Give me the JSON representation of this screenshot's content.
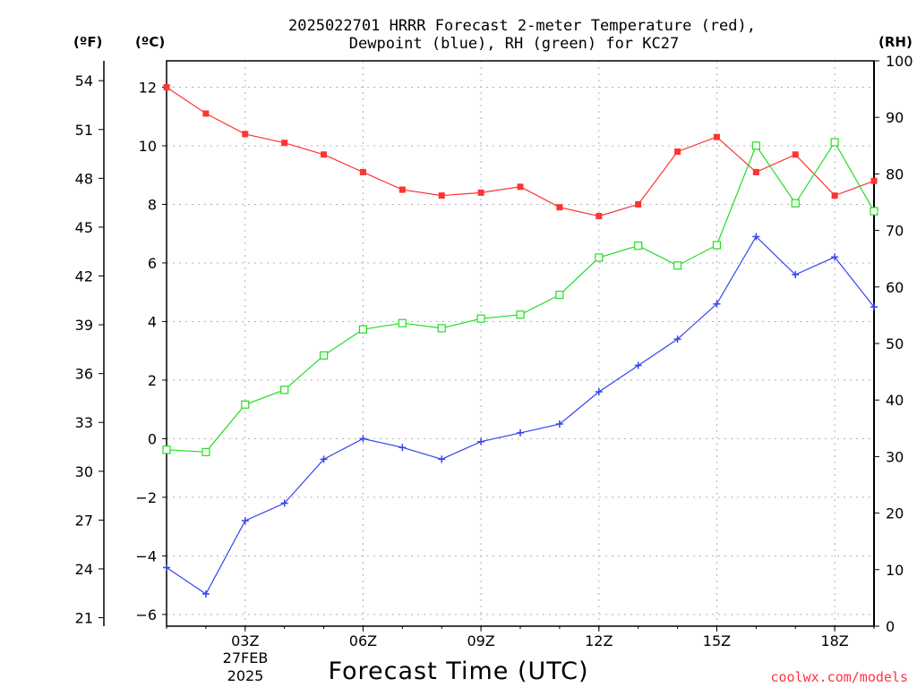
{
  "chart_data": {
    "type": "line",
    "title_lines": [
      "2025022701 HRRR Forecast 2-meter Temperature (red),",
      "Dewpoint (blue), RH (green) for KC27"
    ],
    "xlabel": "Forecast Time (UTC)",
    "credit": "coolwx.com/models",
    "units": {
      "fahrenheit": "(ºF)",
      "celsius": "(ºC)",
      "rh": "(RH)"
    },
    "x_hours": [
      1,
      2,
      3,
      4,
      5,
      6,
      7,
      8,
      9,
      10,
      11,
      12,
      13,
      14,
      15,
      16,
      17,
      18,
      19
    ],
    "xlim": [
      1,
      19
    ],
    "x_ticks": [
      {
        "hour": 3,
        "label": "03Z"
      },
      {
        "hour": 6,
        "label": "06Z"
      },
      {
        "hour": 9,
        "label": "09Z"
      },
      {
        "hour": 12,
        "label": "12Z"
      },
      {
        "hour": 15,
        "label": "15Z"
      },
      {
        "hour": 18,
        "label": "18Z"
      }
    ],
    "date_label_lines": [
      "27FEB",
      "2025"
    ],
    "celsius_axis": {
      "ylim": [
        -6.4,
        12.9
      ],
      "ticks": [
        -6,
        -4,
        -2,
        0,
        2,
        4,
        6,
        8,
        10,
        12
      ]
    },
    "fahrenheit_axis": {
      "ticks": [
        21,
        24,
        27,
        30,
        33,
        36,
        39,
        42,
        45,
        48,
        51,
        54
      ]
    },
    "rh_axis": {
      "ylim": [
        0,
        100
      ],
      "ticks": [
        0,
        10,
        20,
        30,
        40,
        50,
        60,
        70,
        80,
        90,
        100
      ]
    },
    "grid": true,
    "series": [
      {
        "name": "Temperature",
        "axis": "celsius",
        "color": "#ff3333",
        "marker": "filled-square",
        "values": [
          12.0,
          11.1,
          10.4,
          10.1,
          9.7,
          9.1,
          8.5,
          8.3,
          8.4,
          8.6,
          7.9,
          7.6,
          8.0,
          9.8,
          10.3,
          9.1,
          9.7,
          8.3,
          8.8
        ]
      },
      {
        "name": "Dewpoint",
        "axis": "celsius",
        "color": "#3344ee",
        "marker": "plus",
        "values": [
          -4.4,
          -5.3,
          -2.8,
          -2.2,
          -0.7,
          0.0,
          -0.3,
          -0.7,
          -0.1,
          0.2,
          0.5,
          1.6,
          2.5,
          3.4,
          4.6,
          6.9,
          5.6,
          6.2,
          4.5
        ]
      },
      {
        "name": "RH",
        "axis": "rh",
        "color": "#22dd22",
        "marker": "open-square",
        "values": [
          31.2,
          30.8,
          39.2,
          41.8,
          47.9,
          52.5,
          53.6,
          52.7,
          54.4,
          55.1,
          58.6,
          65.2,
          67.3,
          63.8,
          67.4,
          85.0,
          74.8,
          85.6,
          73.4
        ]
      }
    ]
  }
}
